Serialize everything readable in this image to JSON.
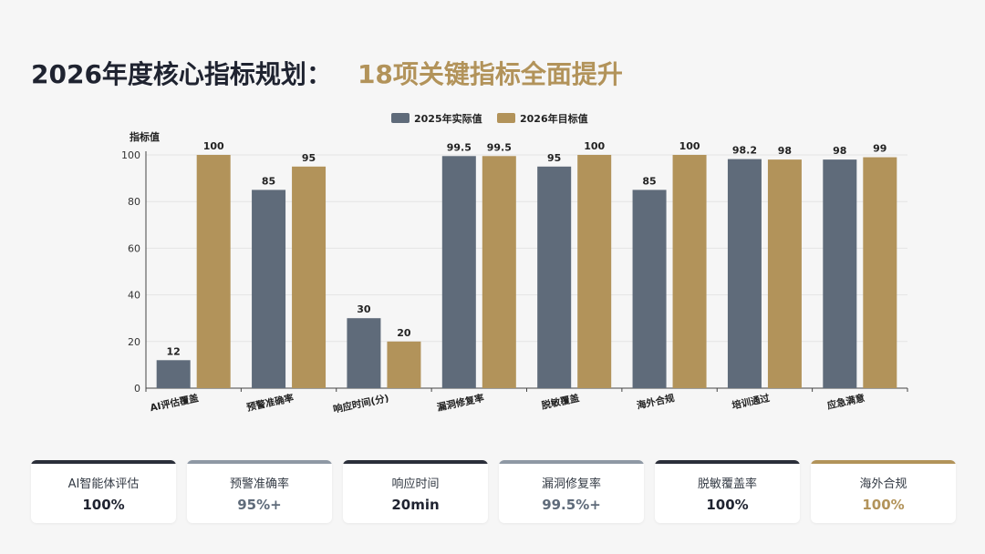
{
  "header": {
    "title": "2026年度核心指标规划",
    "separator": "：",
    "subtitle": "18项关键指标全面提升"
  },
  "colors": {
    "actual": "#5f6b7a",
    "target": "#b2935a",
    "dark": "#2b2f3a",
    "gray": "#8e98a4"
  },
  "chart_data": {
    "type": "bar",
    "ylabel": "指标值",
    "ylim": [
      0,
      100
    ],
    "yticks": [
      0,
      20,
      40,
      60,
      80,
      100
    ],
    "grid": true,
    "legend_position": "top",
    "categories": [
      "AI评估覆盖",
      "预警准确率",
      "响应时间(分)",
      "漏洞修复率",
      "脱敏覆盖",
      "海外合规",
      "培训通过",
      "应急满意"
    ],
    "series": [
      {
        "name": "2025年实际值",
        "values": [
          12,
          85,
          30,
          99.5,
          95,
          85,
          98.2,
          98
        ],
        "labels": [
          "12",
          "85",
          "30",
          "99.5",
          "95",
          "85",
          "98.2",
          "98"
        ]
      },
      {
        "name": "2026年目标值",
        "values": [
          100,
          95,
          20,
          99.5,
          100,
          100,
          98,
          99
        ],
        "labels": [
          "100",
          "95",
          "20",
          "99.5",
          "100",
          "100",
          "98",
          "99"
        ]
      }
    ]
  },
  "cards": [
    {
      "label": "AI智能体评估",
      "value": "100%",
      "bar_color": "#2b2f3a",
      "value_color": "#1f2330"
    },
    {
      "label": "预警准确率",
      "value": "95%+",
      "bar_color": "#8e98a4",
      "value_color": "#5f6b7a"
    },
    {
      "label": "响应时间",
      "value": "20min",
      "bar_color": "#2b2f3a",
      "value_color": "#1f2330"
    },
    {
      "label": "漏洞修复率",
      "value": "99.5%+",
      "bar_color": "#8e98a4",
      "value_color": "#5f6b7a"
    },
    {
      "label": "脱敏覆盖率",
      "value": "100%",
      "bar_color": "#2b2f3a",
      "value_color": "#1f2330"
    },
    {
      "label": "海外合规",
      "value": "100%",
      "bar_color": "#b2935a",
      "value_color": "#b2935a"
    }
  ]
}
